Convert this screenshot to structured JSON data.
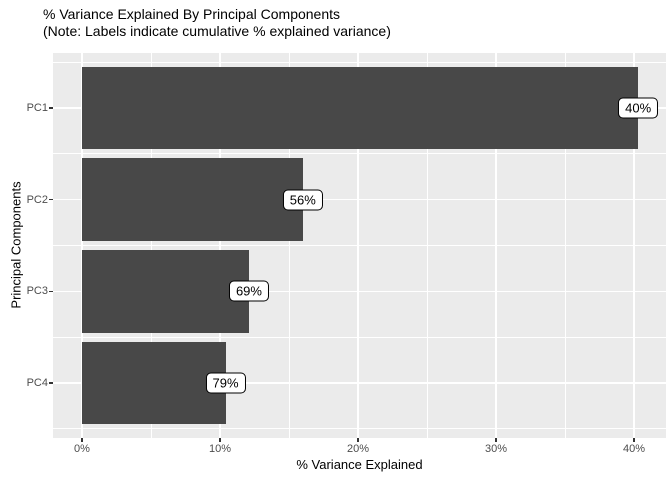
{
  "chart_data": {
    "type": "bar",
    "orientation": "horizontal",
    "title": "% Variance Explained By Principal Components",
    "subtitle": "(Note: Labels indicate cumulative % explained variance)",
    "xlabel": "% Variance Explained",
    "ylabel": "Principal Components",
    "categories": [
      "PC1",
      "PC2",
      "PC3",
      "PC4"
    ],
    "values_pct": [
      40.3,
      16.0,
      12.1,
      10.4
    ],
    "cumulative_labels": [
      "40%",
      "56%",
      "69%",
      "79%"
    ],
    "x_ticks": [
      {
        "pct": 0,
        "label": "0%"
      },
      {
        "pct": 10,
        "label": "10%"
      },
      {
        "pct": 20,
        "label": "20%"
      },
      {
        "pct": 30,
        "label": "30%"
      },
      {
        "pct": 40,
        "label": "40%"
      }
    ],
    "x_minor_ticks_pct": [
      5,
      15,
      25,
      35
    ],
    "xlim_pct": [
      -2,
      42.3
    ],
    "grid": true,
    "legend": "none",
    "colors": {
      "background": "#FFFFFF",
      "panel_bg": "#EBEBEB",
      "grid": "#FFFFFF",
      "bar_fill": "#484848",
      "axis_text": "#4D4D4D",
      "tick_mark": "#333333",
      "title_text": "#000000",
      "label_bg": "#FFFFFF",
      "label_border": "#000000",
      "label_text": "#000000"
    }
  }
}
